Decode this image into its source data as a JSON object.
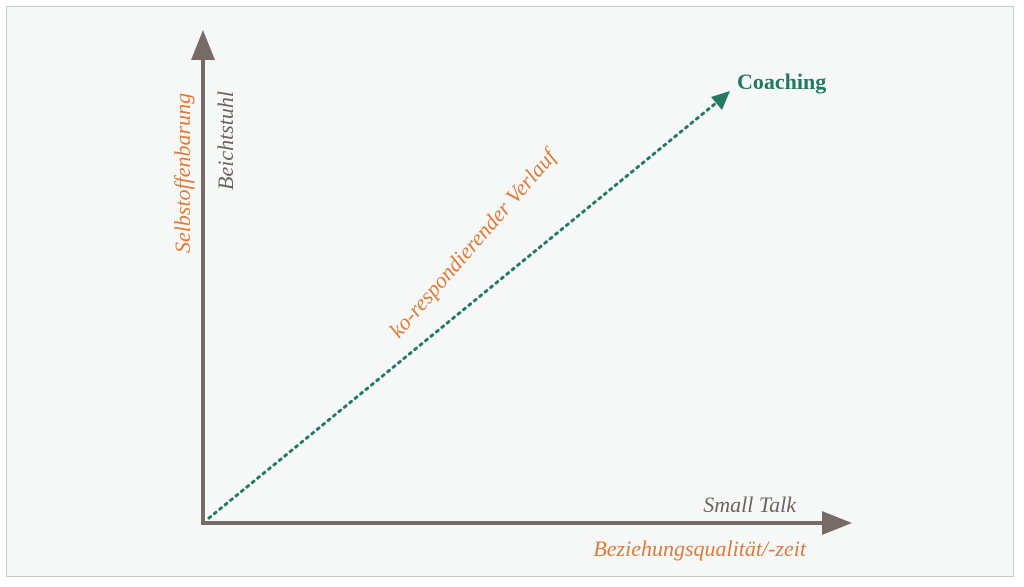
{
  "diagram": {
    "y_axis_label_primary": "Selbstoffenbarung",
    "y_axis_label_secondary": "Beichtstuhl",
    "x_axis_label_primary": "Beziehungsqualität/-zeit",
    "x_axis_label_secondary": "Small Talk",
    "diagonal_label": "ko-respondierender Verlauf",
    "endpoint_label": "Coaching",
    "colors": {
      "axis": "#776b67",
      "orange": "#e07b39",
      "green": "#237a62",
      "gray_text": "#6e6461",
      "background": "#f6f8f7"
    }
  }
}
